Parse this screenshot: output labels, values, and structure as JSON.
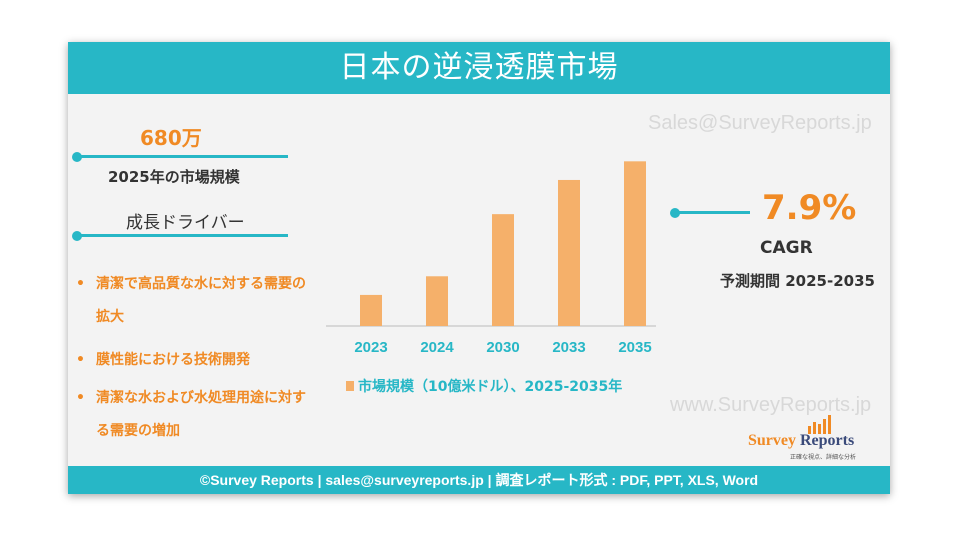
{
  "title": "日本の逆浸透膜市場",
  "watermark_top": "Sales@SurveyReports.jp",
  "watermark_bottom": "www.SurveyReports.jp",
  "market_size": {
    "value": "680万",
    "label": "2025年の市場規模"
  },
  "drivers": {
    "heading": "成長ドライバー",
    "items": [
      {
        "bullet": "•",
        "line1": "清潔で高品質な水に対する需要の",
        "line2": "拡大"
      },
      {
        "bullet": "•",
        "line1": "膜性能における技術開発",
        "line2": ""
      },
      {
        "bullet": "•",
        "line1": "清潔な水および水処理用途に対す",
        "line2": "る需要の増加"
      }
    ]
  },
  "cagr": {
    "value": "7.9%",
    "label": "CAGR",
    "period": "予測期間 2025-2035"
  },
  "chart_data": {
    "type": "bar",
    "categories": [
      "2023",
      "2024",
      "2030",
      "2033",
      "2035"
    ],
    "values": [
      1.0,
      1.6,
      3.6,
      4.7,
      5.3
    ],
    "legend": "市場規模（10億米ドル）、2025-2035年",
    "bar_color": "#f5b06a",
    "axis_color": "#bbbbbb",
    "label_color": "#27b7c6",
    "ylim": [
      0,
      5.6
    ]
  },
  "logo": {
    "name_a": "Survey",
    "name_b": " Reports",
    "tagline": "正確な視点、詳細な分析"
  },
  "footer": "©Survey Reports | sales@surveyreports.jp |  調査レポート形式 : PDF, PPT, XLS, Word",
  "colors": {
    "teal": "#27b7c6",
    "orange": "#f08a24",
    "text": "#333333"
  }
}
